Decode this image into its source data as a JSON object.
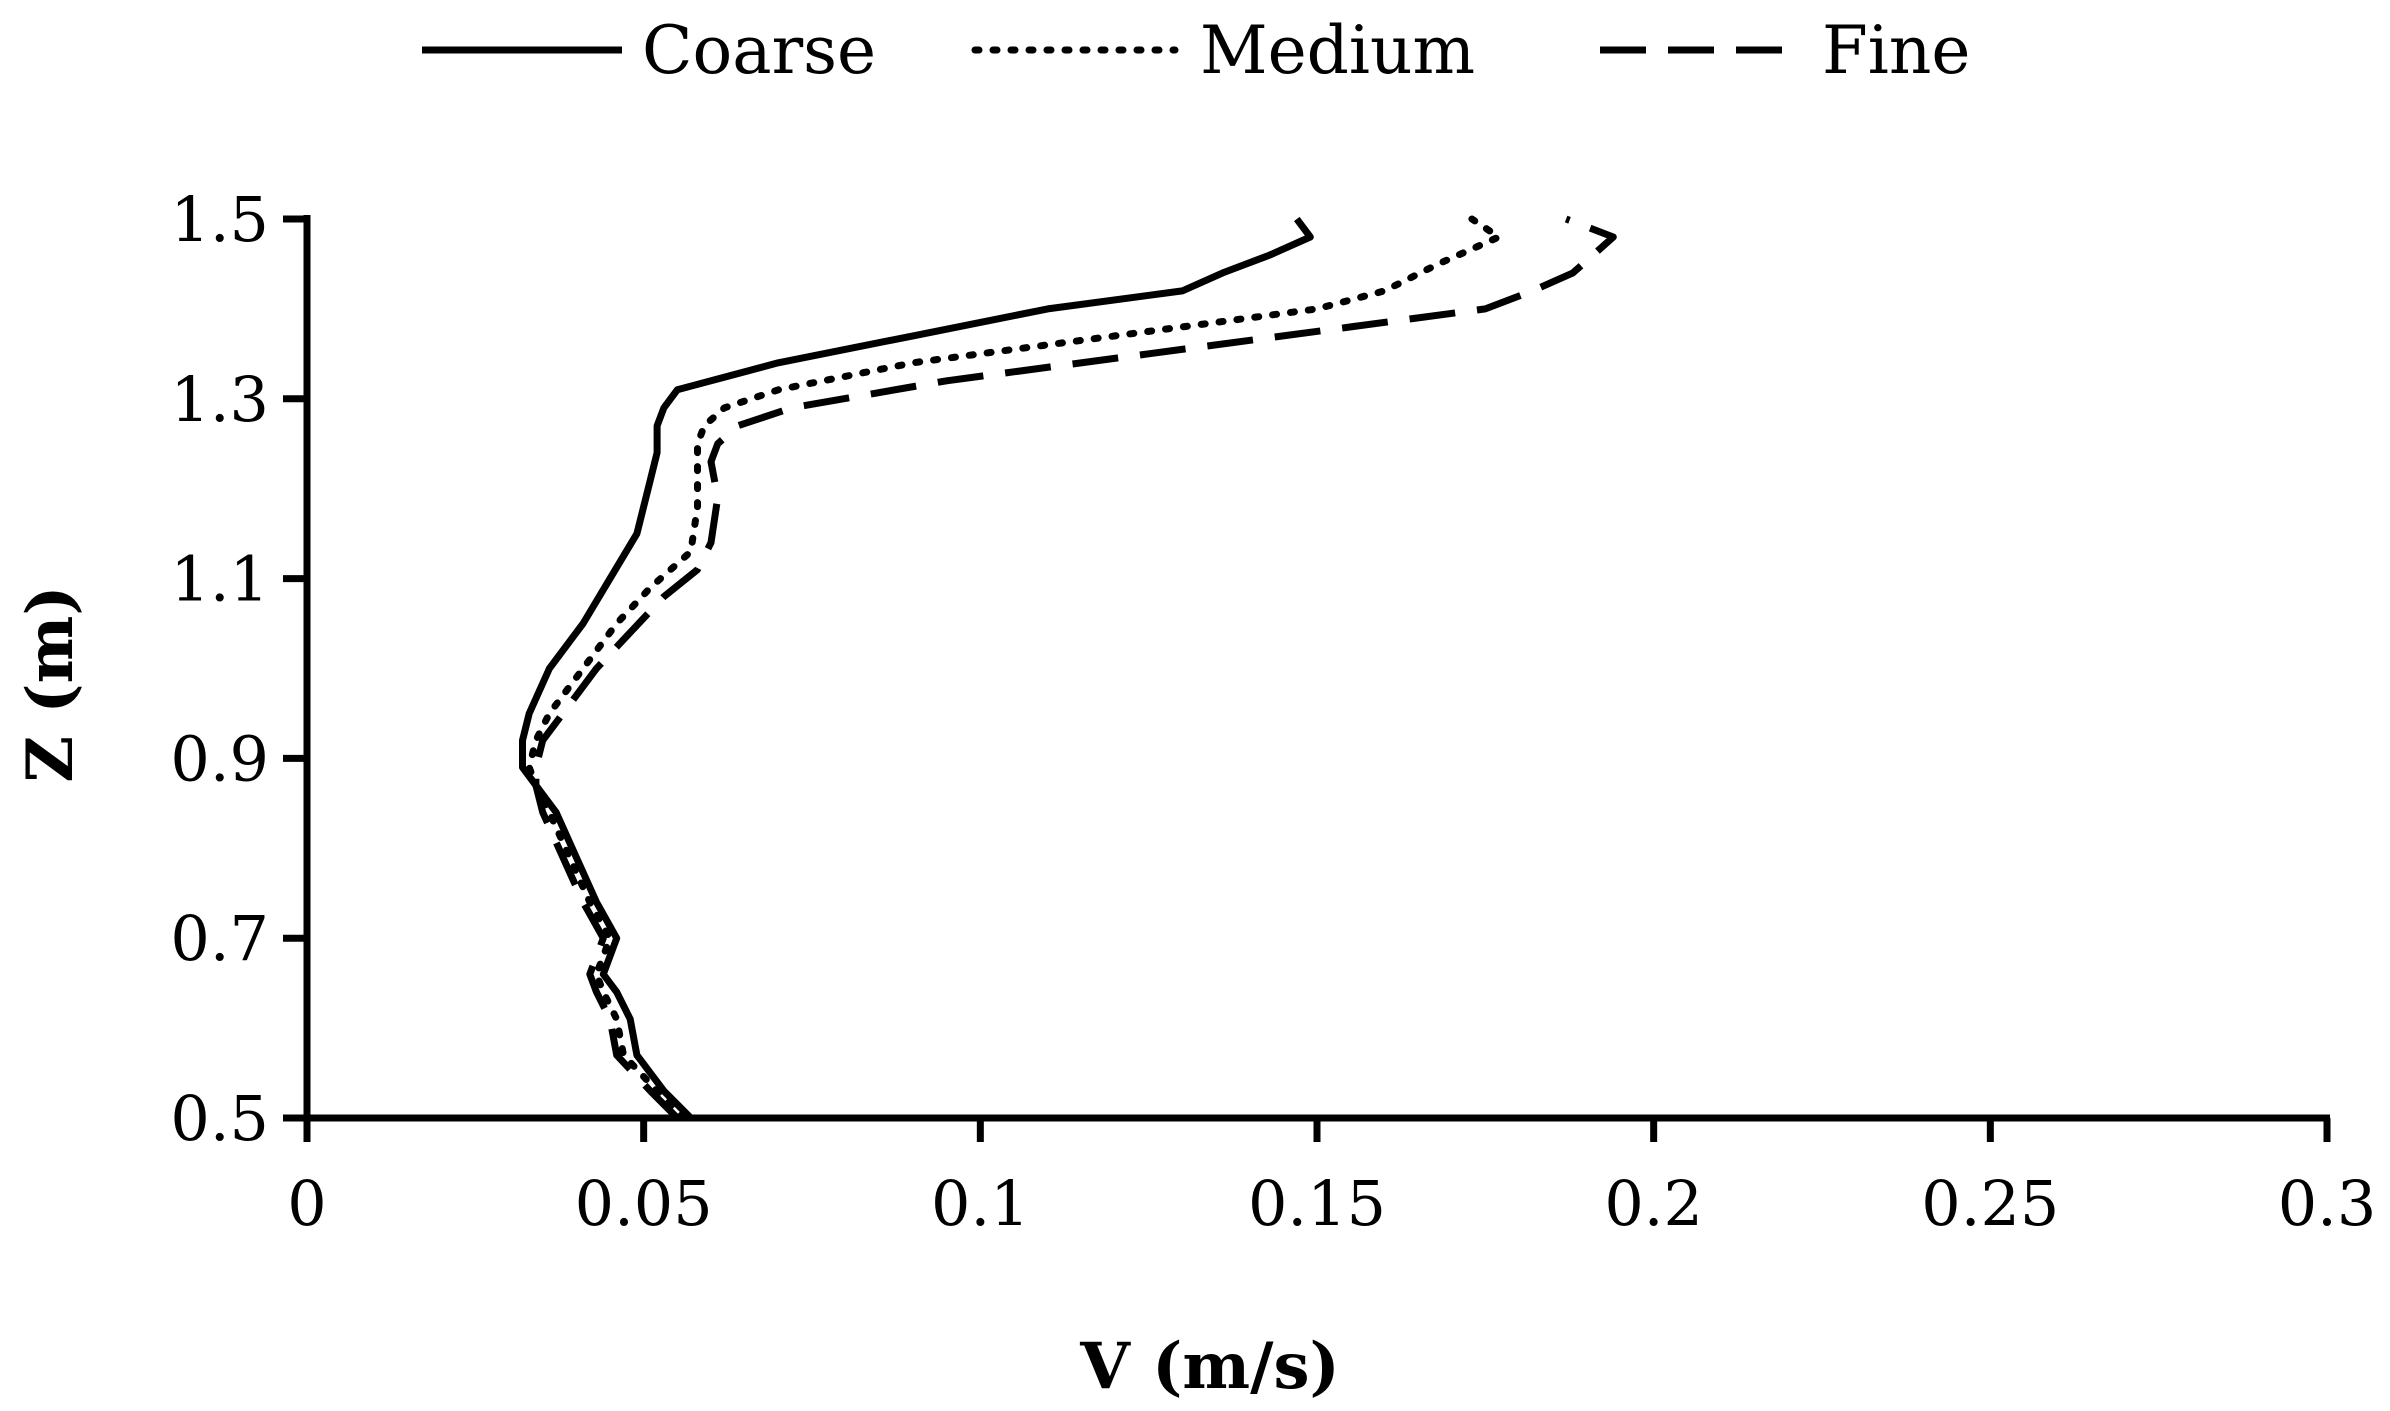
{
  "chart_data": {
    "type": "line",
    "title": "",
    "xlabel": "V (m/s)",
    "ylabel": "Z (m)",
    "xlim": [
      0,
      0.3
    ],
    "ylim": [
      0.5,
      1.5
    ],
    "xticks": [
      0,
      0.05,
      0.1,
      0.15,
      0.2,
      0.25,
      0.3
    ],
    "xtick_labels": [
      "0",
      "0.05",
      "0.1",
      "0.15",
      "0.2",
      "0.25",
      "0.3"
    ],
    "yticks": [
      0.5,
      0.7,
      0.9,
      1.1,
      1.3,
      1.5
    ],
    "ytick_labels": [
      "0.5",
      "0.7",
      "0.9",
      "1.1",
      "1.3",
      "1.5"
    ],
    "grid": false,
    "legend_position": "top",
    "series": [
      {
        "name": "Coarse",
        "style": "solid",
        "x": [
          0.057,
          0.053,
          0.049,
          0.048,
          0.046,
          0.044,
          0.046,
          0.043,
          0.04,
          0.037,
          0.034,
          0.032,
          0.032,
          0.033,
          0.036,
          0.041,
          0.045,
          0.049,
          0.051,
          0.052,
          0.052,
          0.053,
          0.055,
          0.06,
          0.07,
          0.09,
          0.11,
          0.13,
          0.136,
          0.143,
          0.149,
          0.147
        ],
        "y": [
          0.5,
          0.53,
          0.57,
          0.61,
          0.64,
          0.66,
          0.7,
          0.74,
          0.79,
          0.84,
          0.87,
          0.89,
          0.92,
          0.95,
          1.0,
          1.05,
          1.1,
          1.15,
          1.21,
          1.24,
          1.27,
          1.29,
          1.31,
          1.32,
          1.34,
          1.37,
          1.4,
          1.42,
          1.44,
          1.46,
          1.48,
          1.5
        ]
      },
      {
        "name": "Medium",
        "style": "dotted",
        "x": [
          0.056,
          0.052,
          0.047,
          0.046,
          0.044,
          0.043,
          0.045,
          0.042,
          0.039,
          0.036,
          0.034,
          0.033,
          0.034,
          0.036,
          0.041,
          0.046,
          0.051,
          0.057,
          0.058,
          0.058,
          0.058,
          0.059,
          0.062,
          0.07,
          0.09,
          0.12,
          0.15,
          0.16,
          0.168,
          0.174,
          0.177,
          0.173
        ],
        "y": [
          0.5,
          0.53,
          0.57,
          0.61,
          0.64,
          0.66,
          0.7,
          0.74,
          0.79,
          0.84,
          0.87,
          0.89,
          0.92,
          0.95,
          1.0,
          1.05,
          1.09,
          1.13,
          1.18,
          1.22,
          1.25,
          1.27,
          1.29,
          1.31,
          1.34,
          1.37,
          1.4,
          1.42,
          1.45,
          1.47,
          1.48,
          1.5
        ]
      },
      {
        "name": "Fine",
        "style": "dashed",
        "x": [
          0.055,
          0.051,
          0.046,
          0.045,
          0.043,
          0.042,
          0.044,
          0.041,
          0.038,
          0.035,
          0.034,
          0.034,
          0.035,
          0.038,
          0.043,
          0.048,
          0.053,
          0.058,
          0.06,
          0.061,
          0.06,
          0.061,
          0.064,
          0.072,
          0.095,
          0.125,
          0.155,
          0.175,
          0.182,
          0.188,
          0.194,
          0.187
        ],
        "y": [
          0.5,
          0.53,
          0.57,
          0.61,
          0.64,
          0.66,
          0.7,
          0.74,
          0.79,
          0.84,
          0.87,
          0.89,
          0.92,
          0.95,
          1.0,
          1.04,
          1.08,
          1.11,
          1.14,
          1.19,
          1.23,
          1.25,
          1.27,
          1.29,
          1.32,
          1.35,
          1.38,
          1.4,
          1.42,
          1.44,
          1.48,
          1.5
        ]
      }
    ]
  },
  "colors": {
    "line": "#000000",
    "background": "#ffffff"
  }
}
